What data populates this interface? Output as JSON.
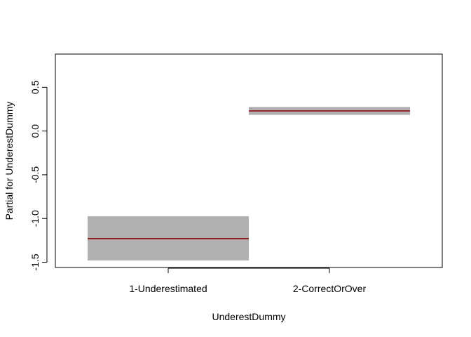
{
  "chart_data": {
    "type": "bar",
    "title": "",
    "xlabel": "UnderestDummy",
    "ylabel": "Partial for UnderestDummy",
    "categories": [
      "1-Underestimated",
      "2-CorrectOrOver"
    ],
    "series": [
      {
        "estimates": [
          -1.23,
          0.23
        ],
        "ci_lower": [
          -1.48,
          0.185
        ],
        "ci_upper": [
          -0.975,
          0.275
        ]
      }
    ],
    "ylim": [
      -1.56,
      0.88
    ],
    "yticks": [
      -1.5,
      -1.0,
      -0.5,
      0.0,
      0.5
    ],
    "ytick_labels": [
      "-1.5",
      "-1.0",
      "-0.5",
      "0.0",
      "0.5"
    ],
    "grid": false,
    "colors": {
      "band": "#b0b0b0",
      "estimate": "#8b0000",
      "axis": "#000000"
    }
  }
}
